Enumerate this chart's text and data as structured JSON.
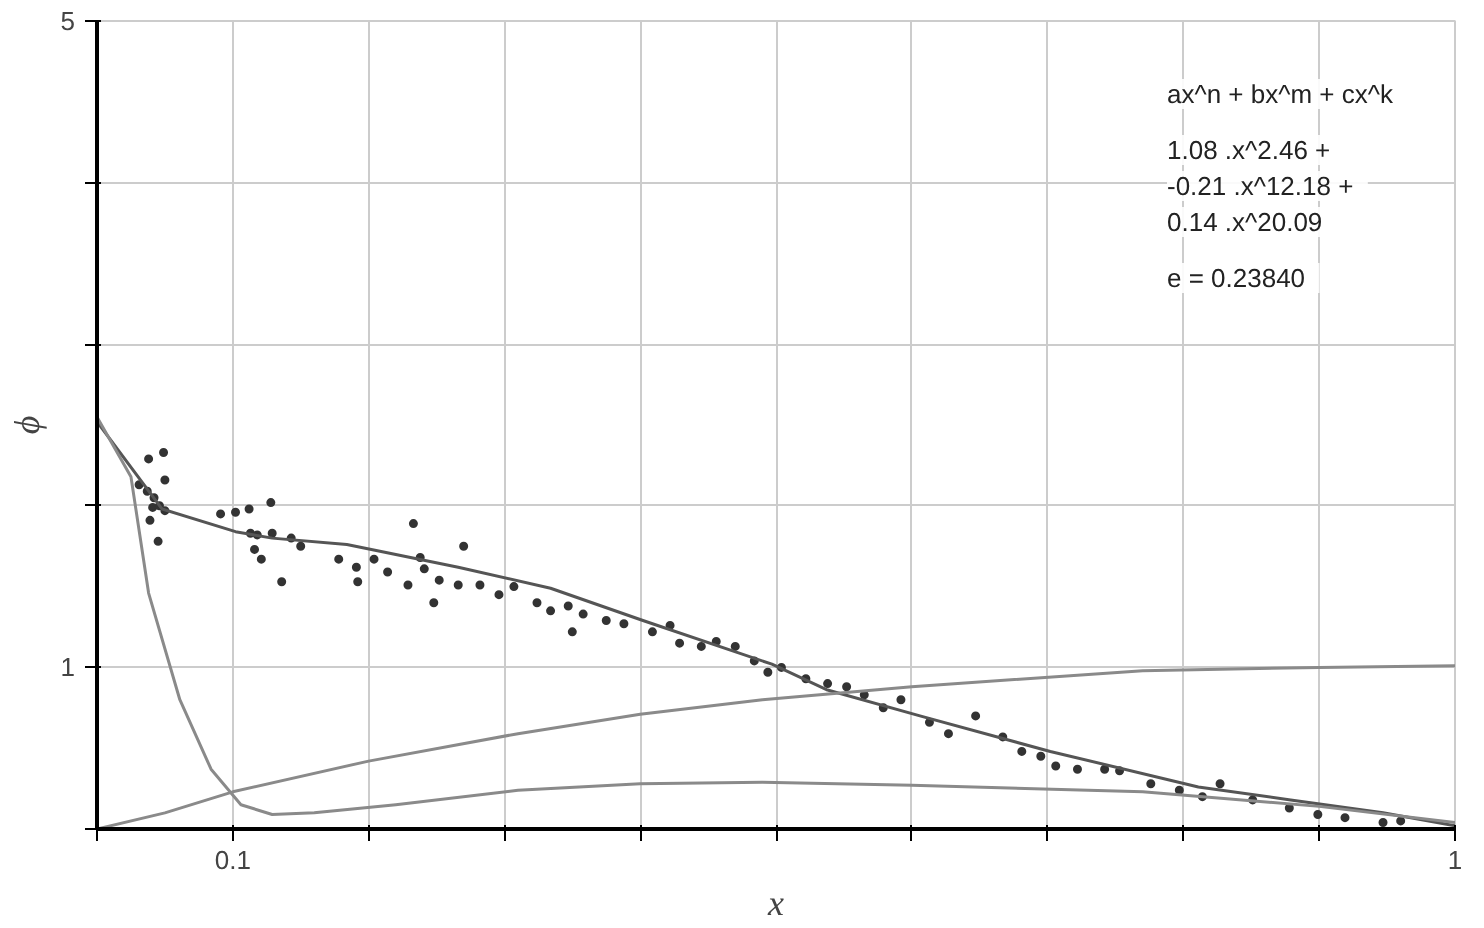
{
  "chart_data": {
    "type": "line",
    "xlabel": "x",
    "ylabel": "ϕ",
    "xlim": [
      0,
      1
    ],
    "ylim": [
      0,
      5
    ],
    "xticks": [
      {
        "value": 0,
        "label": null
      },
      0.1,
      {
        "value": 0.2,
        "label": null
      },
      {
        "value": 0.3,
        "label": null
      },
      {
        "value": 0.4,
        "label": null
      },
      {
        "value": 0.5,
        "label": null
      },
      {
        "value": 0.6,
        "label": null
      },
      {
        "value": 0.7,
        "label": null
      },
      {
        "value": 0.8,
        "label": null
      },
      {
        "value": 0.9,
        "label": null
      },
      1
    ],
    "yticks": [
      {
        "value": 0,
        "label": null
      },
      1,
      {
        "value": 2,
        "label": null
      },
      {
        "value": 3,
        "label": null
      },
      {
        "value": 4,
        "label": null
      },
      5
    ],
    "grid": true,
    "annotations": [
      "ax^n + bx^m + cx^k",
      "1.08  .x^2.46  +",
      "-0.21  .x^12.18  +",
      "0.14  .x^20.09",
      "e =   0.23840"
    ],
    "series": [
      {
        "type": "scatter",
        "color": "#333333",
        "marker": "circle",
        "x": [
          0.038,
          0.049,
          0.05,
          0.031,
          0.037,
          0.042,
          0.041,
          0.046,
          0.05,
          0.045,
          0.039,
          0.091,
          0.102,
          0.112,
          0.128,
          0.113,
          0.118,
          0.116,
          0.129,
          0.143,
          0.15,
          0.121,
          0.136,
          0.178,
          0.191,
          0.204,
          0.214,
          0.233,
          0.238,
          0.241,
          0.192,
          0.229,
          0.252,
          0.266,
          0.27,
          0.248,
          0.282,
          0.296,
          0.307,
          0.324,
          0.334,
          0.347,
          0.358,
          0.375,
          0.388,
          0.35,
          0.409,
          0.422,
          0.429,
          0.445,
          0.456,
          0.47,
          0.484,
          0.494,
          0.504,
          0.522,
          0.538,
          0.552,
          0.565,
          0.579,
          0.592,
          0.613,
          0.627,
          0.647,
          0.667,
          0.681,
          0.695,
          0.706,
          0.722,
          0.742,
          0.753,
          0.776,
          0.797,
          0.814,
          0.827,
          0.851,
          0.878,
          0.899,
          0.919,
          0.947,
          0.96
        ],
        "values": [
          2.29,
          2.33,
          2.16,
          2.13,
          2.09,
          2.05,
          1.99,
          2.0,
          1.97,
          1.78,
          1.91,
          1.95,
          1.96,
          1.98,
          2.02,
          1.83,
          1.82,
          1.73,
          1.83,
          1.8,
          1.75,
          1.67,
          1.53,
          1.67,
          1.62,
          1.67,
          1.59,
          1.89,
          1.68,
          1.61,
          1.53,
          1.51,
          1.54,
          1.51,
          1.75,
          1.4,
          1.51,
          1.45,
          1.5,
          1.4,
          1.35,
          1.38,
          1.33,
          1.29,
          1.27,
          1.22,
          1.22,
          1.26,
          1.15,
          1.13,
          1.16,
          1.13,
          1.04,
          0.97,
          1.0,
          0.93,
          0.9,
          0.88,
          0.83,
          0.75,
          0.8,
          0.66,
          0.59,
          0.7,
          0.57,
          0.48,
          0.45,
          0.39,
          0.37,
          0.37,
          0.36,
          0.28,
          0.24,
          0.2,
          0.28,
          0.18,
          0.13,
          0.09,
          0.07,
          0.04,
          0.05
        ]
      },
      {
        "color": "#555555",
        "x": [
          0,
          0.048,
          0.102,
          0.129,
          0.184,
          0.266,
          0.334,
          0.402,
          0.497,
          0.538,
          0.606,
          0.702,
          0.811,
          0.879,
          0.947,
          1.0
        ],
        "values": [
          2.52,
          1.98,
          1.84,
          1.8,
          1.76,
          1.62,
          1.49,
          1.29,
          1.02,
          0.86,
          0.7,
          0.48,
          0.26,
          0.18,
          0.1,
          0.02
        ]
      },
      {
        "color": "#8a8a8a",
        "x": [
          0,
          0.025,
          0.038,
          0.061,
          0.084,
          0.106,
          0.129,
          0.16,
          0.22,
          0.31,
          0.4,
          0.49,
          0.6,
          0.77,
          0.9,
          1.0
        ],
        "values": [
          2.55,
          2.18,
          1.46,
          0.8,
          0.37,
          0.15,
          0.09,
          0.1,
          0.15,
          0.24,
          0.28,
          0.29,
          0.27,
          0.23,
          0.14,
          0.04
        ]
      },
      {
        "color": "#8a8a8a",
        "x": [
          0,
          0.05,
          0.1,
          0.2,
          0.31,
          0.4,
          0.49,
          0.6,
          0.77,
          0.9,
          1.0
        ],
        "values": [
          0,
          0.1,
          0.23,
          0.42,
          0.59,
          0.71,
          0.8,
          0.88,
          0.98,
          1.0,
          1.01
        ]
      }
    ]
  }
}
